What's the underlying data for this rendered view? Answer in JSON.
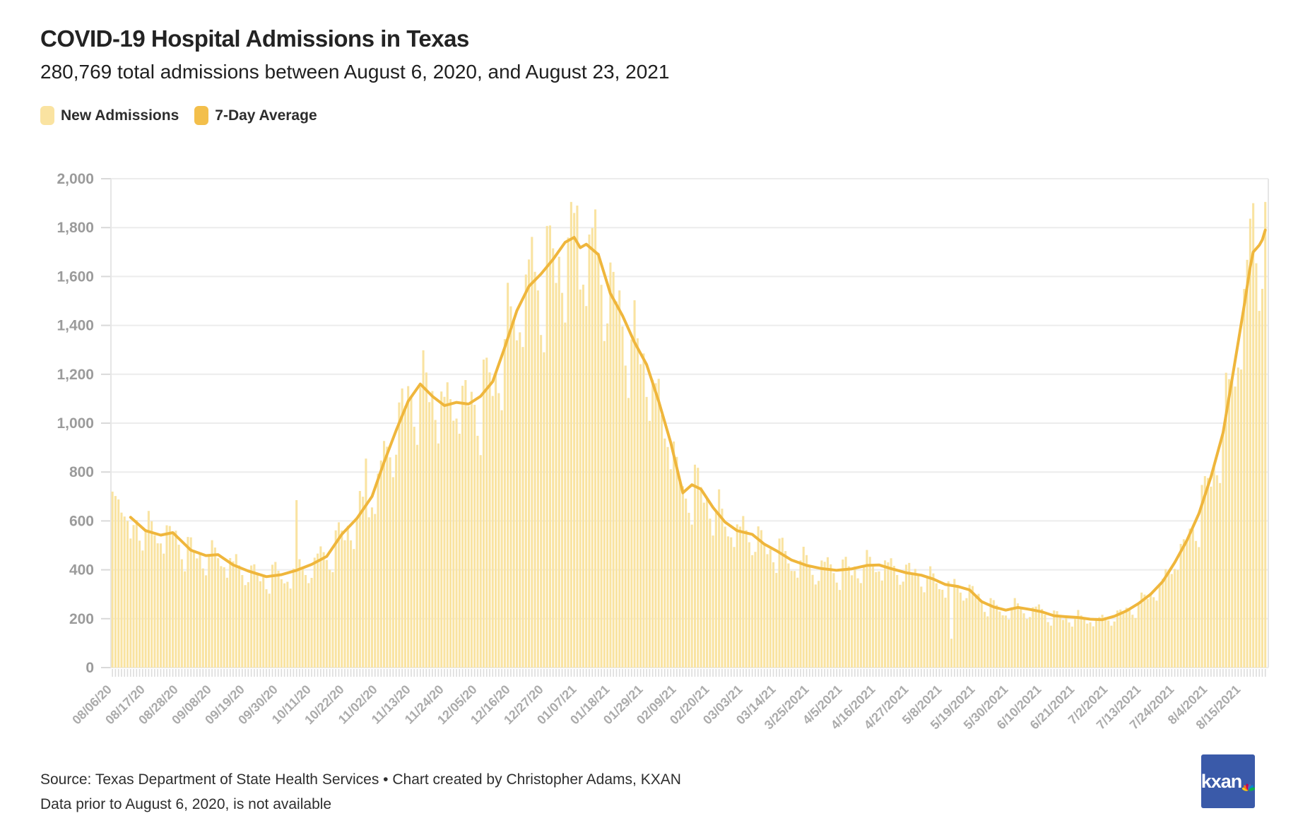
{
  "title": "COVID-19 Hospital Admissions in Texas",
  "subtitle": "280,769 total admissions between August 6, 2020, and August 23, 2021",
  "legend": {
    "items": [
      {
        "label": "New Admissions",
        "color": "#FAE3A1"
      },
      {
        "label": "7-Day Average",
        "color": "#F3BF4B"
      }
    ]
  },
  "footer": {
    "source_line1": "Source: Texas Department of State Health Services • Chart created by Christopher Adams, KXAN",
    "source_line2": "Data prior to August 6, 2020, is not available"
  },
  "logo": {
    "text": "kxan",
    "bg_color": "#3A5AA9",
    "peacock_colors": [
      "#FCCC12",
      "#F37021",
      "#CC004C",
      "#6460AA",
      "#0089D0",
      "#0DB14B"
    ]
  },
  "chart_data": {
    "type": "bar",
    "title": "COVID-19 Hospital Admissions in Texas",
    "x_start_date": "08/06/20",
    "x_end_date": "08/23/21",
    "num_days": 383,
    "ylim": [
      0,
      2000
    ],
    "grid": "horizontal",
    "legend_position": "top-left",
    "y_ticks": [
      {
        "value": 0,
        "label": "0"
      },
      {
        "value": 200,
        "label": "200"
      },
      {
        "value": 400,
        "label": "400"
      },
      {
        "value": 600,
        "label": "600"
      },
      {
        "value": 800,
        "label": "800"
      },
      {
        "value": 1000,
        "label": "1,000"
      },
      {
        "value": 1200,
        "label": "1,200"
      },
      {
        "value": 1400,
        "label": "1,400"
      },
      {
        "value": 1600,
        "label": "1,600"
      },
      {
        "value": 1800,
        "label": "1,800"
      },
      {
        "value": 2000,
        "label": "2,000"
      }
    ],
    "x_ticks": [
      {
        "day": 0,
        "label": "08/06/20"
      },
      {
        "day": 11,
        "label": "08/17/20"
      },
      {
        "day": 22,
        "label": "08/28/20"
      },
      {
        "day": 33,
        "label": "09/08/20"
      },
      {
        "day": 44,
        "label": "09/19/20"
      },
      {
        "day": 55,
        "label": "09/30/20"
      },
      {
        "day": 66,
        "label": "10/11/20"
      },
      {
        "day": 77,
        "label": "10/22/20"
      },
      {
        "day": 88,
        "label": "11/02/20"
      },
      {
        "day": 99,
        "label": "11/13/20"
      },
      {
        "day": 110,
        "label": "11/24/20"
      },
      {
        "day": 121,
        "label": "12/05/20"
      },
      {
        "day": 132,
        "label": "12/16/20"
      },
      {
        "day": 143,
        "label": "12/27/20"
      },
      {
        "day": 154,
        "label": "01/07/21"
      },
      {
        "day": 165,
        "label": "01/18/21"
      },
      {
        "day": 176,
        "label": "01/29/21"
      },
      {
        "day": 187,
        "label": "02/09/21"
      },
      {
        "day": 198,
        "label": "02/20/21"
      },
      {
        "day": 209,
        "label": "03/03/21"
      },
      {
        "day": 220,
        "label": "03/14/21"
      },
      {
        "day": 231,
        "label": "3/25/2021"
      },
      {
        "day": 242,
        "label": "4/5/2021"
      },
      {
        "day": 253,
        "label": "4/16/2021"
      },
      {
        "day": 264,
        "label": "4/27/2021"
      },
      {
        "day": 275,
        "label": "5/8/2021"
      },
      {
        "day": 286,
        "label": "5/19/2021"
      },
      {
        "day": 297,
        "label": "5/30/2021"
      },
      {
        "day": 308,
        "label": "6/10/2021"
      },
      {
        "day": 319,
        "label": "6/21/2021"
      },
      {
        "day": 330,
        "label": "7/2/2021"
      },
      {
        "day": 341,
        "label": "7/13/2021"
      },
      {
        "day": 352,
        "label": "7/24/2021"
      },
      {
        "day": 363,
        "label": "8/4/2021"
      },
      {
        "day": 374,
        "label": "8/15/2021"
      }
    ],
    "series": [
      {
        "name": "New Admissions",
        "type": "bar",
        "color": "#F9E3A1",
        "first_week_bars": [
          720,
          702,
          688,
          634,
          618,
          600,
          528
        ],
        "notable_bars": [
          {
            "day": 0,
            "date": "08/06/20",
            "value": 720
          },
          {
            "day": 61,
            "date": "10/06/20",
            "value": 685
          },
          {
            "day": 84,
            "date": "10/29/20",
            "value": 855
          },
          {
            "day": 153,
            "date": "01/06/21",
            "value": 1860
          },
          {
            "day": 154,
            "date": "01/07/21",
            "value": 1890
          },
          {
            "day": 278,
            "date": "05/11/21",
            "value": 118
          },
          {
            "day": 378,
            "date": "08/19/21",
            "value": 1900
          }
        ],
        "weekly_pattern_sun_to_sat": [
          0.84,
          1.06,
          1.1,
          1.05,
          1.0,
          0.96,
          0.88
        ],
        "jitter_fraction": 0.07,
        "start_day_of_week": 4
      },
      {
        "name": "7-Day Average",
        "type": "line",
        "color": "#EFB63C",
        "points": [
          {
            "day": 6,
            "date": "08/12/20",
            "value": 615
          },
          {
            "day": 11,
            "date": "08/17/20",
            "value": 560
          },
          {
            "day": 16,
            "date": "08/22/20",
            "value": 542
          },
          {
            "day": 20,
            "date": "08/26/20",
            "value": 552
          },
          {
            "day": 26,
            "date": "09/01/20",
            "value": 480
          },
          {
            "day": 31,
            "date": "09/06/20",
            "value": 458
          },
          {
            "day": 35,
            "date": "09/10/20",
            "value": 462
          },
          {
            "day": 40,
            "date": "09/15/20",
            "value": 420
          },
          {
            "day": 45,
            "date": "09/20/20",
            "value": 395
          },
          {
            "day": 51,
            "date": "09/26/20",
            "value": 372
          },
          {
            "day": 56,
            "date": "10/01/20",
            "value": 380
          },
          {
            "day": 61,
            "date": "10/06/20",
            "value": 398
          },
          {
            "day": 66,
            "date": "10/11/20",
            "value": 422
          },
          {
            "day": 71,
            "date": "10/16/20",
            "value": 455
          },
          {
            "day": 76,
            "date": "10/21/20",
            "value": 545
          },
          {
            "day": 81,
            "date": "10/26/20",
            "value": 610
          },
          {
            "day": 86,
            "date": "10/31/20",
            "value": 700
          },
          {
            "day": 90,
            "date": "11/04/20",
            "value": 840
          },
          {
            "day": 94,
            "date": "11/08/20",
            "value": 970
          },
          {
            "day": 98,
            "date": "11/12/20",
            "value": 1090
          },
          {
            "day": 102,
            "date": "11/16/20",
            "value": 1160
          },
          {
            "day": 106,
            "date": "11/20/20",
            "value": 1110
          },
          {
            "day": 110,
            "date": "11/24/20",
            "value": 1072
          },
          {
            "day": 114,
            "date": "11/28/20",
            "value": 1085
          },
          {
            "day": 118,
            "date": "12/02/20",
            "value": 1078
          },
          {
            "day": 122,
            "date": "12/06/20",
            "value": 1110
          },
          {
            "day": 126,
            "date": "12/10/20",
            "value": 1170
          },
          {
            "day": 130,
            "date": "12/14/20",
            "value": 1310
          },
          {
            "day": 134,
            "date": "12/18/20",
            "value": 1460
          },
          {
            "day": 138,
            "date": "12/22/20",
            "value": 1560
          },
          {
            "day": 142,
            "date": "12/26/20",
            "value": 1610
          },
          {
            "day": 146,
            "date": "12/30/20",
            "value": 1670
          },
          {
            "day": 150,
            "date": "01/03/21",
            "value": 1740
          },
          {
            "day": 153,
            "date": "01/06/21",
            "value": 1760
          },
          {
            "day": 155,
            "date": "01/08/21",
            "value": 1718
          },
          {
            "day": 157,
            "date": "01/10/21",
            "value": 1732
          },
          {
            "day": 161,
            "date": "01/14/21",
            "value": 1690
          },
          {
            "day": 165,
            "date": "01/18/21",
            "value": 1530
          },
          {
            "day": 169,
            "date": "01/22/21",
            "value": 1440
          },
          {
            "day": 173,
            "date": "01/26/21",
            "value": 1330
          },
          {
            "day": 177,
            "date": "01/30/21",
            "value": 1240
          },
          {
            "day": 181,
            "date": "02/03/21",
            "value": 1090
          },
          {
            "day": 185,
            "date": "02/07/21",
            "value": 920
          },
          {
            "day": 189,
            "date": "02/11/21",
            "value": 715
          },
          {
            "day": 192,
            "date": "02/14/21",
            "value": 748
          },
          {
            "day": 195,
            "date": "02/17/21",
            "value": 730
          },
          {
            "day": 199,
            "date": "02/21/21",
            "value": 655
          },
          {
            "day": 203,
            "date": "02/25/21",
            "value": 595
          },
          {
            "day": 207,
            "date": "03/01/21",
            "value": 560
          },
          {
            "day": 212,
            "date": "03/06/21",
            "value": 545
          },
          {
            "day": 216,
            "date": "03/10/21",
            "value": 505
          },
          {
            "day": 220,
            "date": "03/14/21",
            "value": 478
          },
          {
            "day": 225,
            "date": "03/19/21",
            "value": 440
          },
          {
            "day": 230,
            "date": "03/24/21",
            "value": 418
          },
          {
            "day": 235,
            "date": "03/29/21",
            "value": 405
          },
          {
            "day": 240,
            "date": "04/03/21",
            "value": 398
          },
          {
            "day": 245,
            "date": "04/08/21",
            "value": 404
          },
          {
            "day": 250,
            "date": "04/13/21",
            "value": 418
          },
          {
            "day": 254,
            "date": "04/17/21",
            "value": 420
          },
          {
            "day": 258,
            "date": "04/21/21",
            "value": 405
          },
          {
            "day": 263,
            "date": "04/26/21",
            "value": 388
          },
          {
            "day": 268,
            "date": "05/01/21",
            "value": 378
          },
          {
            "day": 272,
            "date": "05/05/21",
            "value": 362
          },
          {
            "day": 276,
            "date": "05/09/21",
            "value": 340
          },
          {
            "day": 280,
            "date": "05/13/21",
            "value": 332
          },
          {
            "day": 284,
            "date": "05/17/21",
            "value": 318
          },
          {
            "day": 288,
            "date": "05/21/21",
            "value": 270
          },
          {
            "day": 292,
            "date": "05/25/21",
            "value": 248
          },
          {
            "day": 296,
            "date": "05/29/21",
            "value": 235
          },
          {
            "day": 300,
            "date": "06/02/21",
            "value": 246
          },
          {
            "day": 304,
            "date": "06/06/21",
            "value": 238
          },
          {
            "day": 308,
            "date": "06/10/21",
            "value": 228
          },
          {
            "day": 312,
            "date": "06/14/21",
            "value": 212
          },
          {
            "day": 316,
            "date": "06/18/21",
            "value": 208
          },
          {
            "day": 320,
            "date": "06/22/21",
            "value": 205
          },
          {
            "day": 324,
            "date": "06/26/21",
            "value": 198
          },
          {
            "day": 328,
            "date": "06/30/21",
            "value": 196
          },
          {
            "day": 332,
            "date": "07/04/21",
            "value": 210
          },
          {
            "day": 336,
            "date": "07/08/21",
            "value": 232
          },
          {
            "day": 340,
            "date": "07/12/21",
            "value": 262
          },
          {
            "day": 344,
            "date": "07/16/21",
            "value": 300
          },
          {
            "day": 348,
            "date": "07/20/21",
            "value": 352
          },
          {
            "day": 352,
            "date": "07/24/21",
            "value": 430
          },
          {
            "day": 356,
            "date": "07/28/21",
            "value": 520
          },
          {
            "day": 360,
            "date": "08/01/21",
            "value": 630
          },
          {
            "day": 364,
            "date": "08/05/21",
            "value": 780
          },
          {
            "day": 368,
            "date": "08/09/21",
            "value": 960
          },
          {
            "day": 371,
            "date": "08/12/21",
            "value": 1180
          },
          {
            "day": 373,
            "date": "08/14/21",
            "value": 1330
          },
          {
            "day": 375,
            "date": "08/16/21",
            "value": 1480
          },
          {
            "day": 377,
            "date": "08/18/21",
            "value": 1640
          },
          {
            "day": 378,
            "date": "08/19/21",
            "value": 1700
          },
          {
            "day": 380,
            "date": "08/21/21",
            "value": 1728
          },
          {
            "day": 381,
            "date": "08/22/21",
            "value": 1750
          },
          {
            "day": 382,
            "date": "08/23/21",
            "value": 1790
          }
        ]
      }
    ],
    "colors": {
      "bar": "#F9E3A1",
      "line": "#EFB63C",
      "gridline": "#ececec",
      "axis_label": "#9b9b9b",
      "x_label": "#ababab"
    }
  }
}
